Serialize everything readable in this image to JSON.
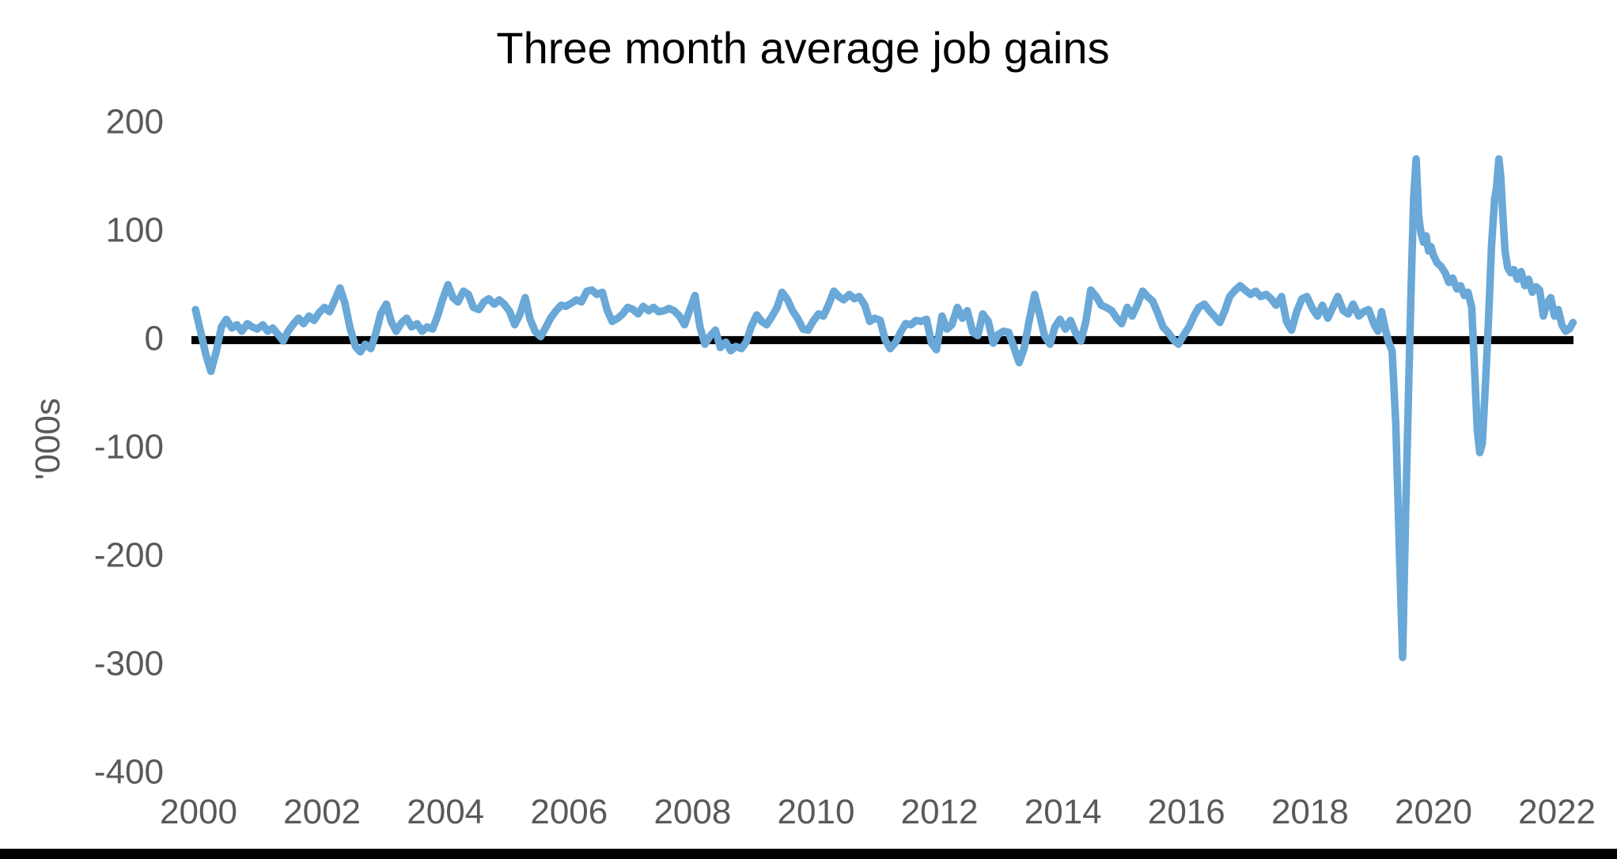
{
  "title": "Three month average job gains",
  "colors": {
    "line": "#69a8d7",
    "zero_line": "#000000",
    "bottom_bar": "#000000",
    "tick_label": "#595959",
    "title": "#000000",
    "background": "#ffffff"
  },
  "chart_data": {
    "type": "line",
    "title": "Three month average job gains",
    "xlabel": "",
    "ylabel": "'000s",
    "units": "thousands of jobs",
    "ylim": [
      -400,
      200
    ],
    "xlim": [
      1999.9,
      2022.45
    ],
    "y_ticks": [
      200,
      100,
      0,
      -100,
      -200,
      -300,
      -400
    ],
    "x_ticks": [
      2000,
      2002,
      2004,
      2006,
      2008,
      2010,
      2012,
      2014,
      2016,
      2018,
      2020,
      2022
    ],
    "grid": false,
    "legend": false,
    "zero_axis_emphasized": true,
    "series": [
      {
        "name": "Three month average job gains ('000s)",
        "points": [
          [
            1999.95,
            26
          ],
          [
            2000.04,
            4
          ],
          [
            2000.12,
            -16
          ],
          [
            2000.2,
            -31
          ],
          [
            2000.29,
            -12
          ],
          [
            2000.37,
            10
          ],
          [
            2000.45,
            17
          ],
          [
            2000.54,
            9
          ],
          [
            2000.62,
            12
          ],
          [
            2000.7,
            6
          ],
          [
            2000.79,
            13
          ],
          [
            2000.87,
            10
          ],
          [
            2000.95,
            8
          ],
          [
            2001.04,
            12
          ],
          [
            2001.12,
            6
          ],
          [
            2001.2,
            9
          ],
          [
            2001.29,
            3
          ],
          [
            2001.37,
            -3
          ],
          [
            2001.45,
            6
          ],
          [
            2001.54,
            13
          ],
          [
            2001.62,
            18
          ],
          [
            2001.7,
            13
          ],
          [
            2001.79,
            20
          ],
          [
            2001.87,
            16
          ],
          [
            2001.95,
            23
          ],
          [
            2002.04,
            28
          ],
          [
            2002.12,
            24
          ],
          [
            2002.2,
            34
          ],
          [
            2002.29,
            46
          ],
          [
            2002.37,
            32
          ],
          [
            2002.45,
            10
          ],
          [
            2002.54,
            -8
          ],
          [
            2002.62,
            -13
          ],
          [
            2002.7,
            -6
          ],
          [
            2002.79,
            -10
          ],
          [
            2002.87,
            4
          ],
          [
            2002.95,
            22
          ],
          [
            2003.04,
            31
          ],
          [
            2003.12,
            15
          ],
          [
            2003.2,
            6
          ],
          [
            2003.29,
            14
          ],
          [
            2003.37,
            18
          ],
          [
            2003.45,
            10
          ],
          [
            2003.54,
            13
          ],
          [
            2003.62,
            6
          ],
          [
            2003.7,
            10
          ],
          [
            2003.79,
            8
          ],
          [
            2003.87,
            20
          ],
          [
            2003.95,
            35
          ],
          [
            2004.04,
            49
          ],
          [
            2004.12,
            37
          ],
          [
            2004.2,
            33
          ],
          [
            2004.29,
            43
          ],
          [
            2004.37,
            40
          ],
          [
            2004.45,
            28
          ],
          [
            2004.54,
            26
          ],
          [
            2004.62,
            33
          ],
          [
            2004.7,
            36
          ],
          [
            2004.79,
            31
          ],
          [
            2004.87,
            35
          ],
          [
            2004.95,
            31
          ],
          [
            2005.04,
            24
          ],
          [
            2005.12,
            12
          ],
          [
            2005.2,
            21
          ],
          [
            2005.29,
            37
          ],
          [
            2005.37,
            17
          ],
          [
            2005.45,
            6
          ],
          [
            2005.54,
            1
          ],
          [
            2005.62,
            9
          ],
          [
            2005.7,
            18
          ],
          [
            2005.79,
            25
          ],
          [
            2005.87,
            30
          ],
          [
            2005.95,
            29
          ],
          [
            2006.04,
            32
          ],
          [
            2006.12,
            35
          ],
          [
            2006.2,
            33
          ],
          [
            2006.29,
            43
          ],
          [
            2006.37,
            44
          ],
          [
            2006.45,
            40
          ],
          [
            2006.54,
            42
          ],
          [
            2006.62,
            25
          ],
          [
            2006.7,
            15
          ],
          [
            2006.79,
            18
          ],
          [
            2006.87,
            22
          ],
          [
            2006.95,
            28
          ],
          [
            2007.04,
            26
          ],
          [
            2007.12,
            22
          ],
          [
            2007.2,
            29
          ],
          [
            2007.29,
            25
          ],
          [
            2007.37,
            28
          ],
          [
            2007.45,
            24
          ],
          [
            2007.54,
            25
          ],
          [
            2007.62,
            27
          ],
          [
            2007.7,
            25
          ],
          [
            2007.79,
            20
          ],
          [
            2007.87,
            12
          ],
          [
            2007.95,
            25
          ],
          [
            2008.04,
            39
          ],
          [
            2008.12,
            10
          ],
          [
            2008.2,
            -6
          ],
          [
            2008.29,
            2
          ],
          [
            2008.37,
            7
          ],
          [
            2008.45,
            -9
          ],
          [
            2008.54,
            -4
          ],
          [
            2008.62,
            -12
          ],
          [
            2008.7,
            -8
          ],
          [
            2008.79,
            -10
          ],
          [
            2008.87,
            -4
          ],
          [
            2008.95,
            10
          ],
          [
            2009.04,
            21
          ],
          [
            2009.12,
            15
          ],
          [
            2009.2,
            12
          ],
          [
            2009.29,
            20
          ],
          [
            2009.37,
            28
          ],
          [
            2009.45,
            42
          ],
          [
            2009.54,
            35
          ],
          [
            2009.62,
            25
          ],
          [
            2009.7,
            18
          ],
          [
            2009.79,
            8
          ],
          [
            2009.87,
            7
          ],
          [
            2009.95,
            15
          ],
          [
            2010.04,
            22
          ],
          [
            2010.12,
            20
          ],
          [
            2010.2,
            30
          ],
          [
            2010.29,
            43
          ],
          [
            2010.37,
            38
          ],
          [
            2010.45,
            35
          ],
          [
            2010.54,
            40
          ],
          [
            2010.62,
            36
          ],
          [
            2010.7,
            38
          ],
          [
            2010.79,
            30
          ],
          [
            2010.87,
            15
          ],
          [
            2010.95,
            18
          ],
          [
            2011.04,
            16
          ],
          [
            2011.12,
            -2
          ],
          [
            2011.2,
            -10
          ],
          [
            2011.29,
            -4
          ],
          [
            2011.37,
            5
          ],
          [
            2011.45,
            13
          ],
          [
            2011.54,
            12
          ],
          [
            2011.62,
            16
          ],
          [
            2011.7,
            15
          ],
          [
            2011.79,
            17
          ],
          [
            2011.87,
            -5
          ],
          [
            2011.95,
            -11
          ],
          [
            2012.04,
            20
          ],
          [
            2012.12,
            8
          ],
          [
            2012.2,
            12
          ],
          [
            2012.29,
            28
          ],
          [
            2012.37,
            18
          ],
          [
            2012.45,
            25
          ],
          [
            2012.54,
            5
          ],
          [
            2012.62,
            2
          ],
          [
            2012.7,
            22
          ],
          [
            2012.79,
            15
          ],
          [
            2012.87,
            -5
          ],
          [
            2012.95,
            3
          ],
          [
            2013.04,
            6
          ],
          [
            2013.12,
            5
          ],
          [
            2013.2,
            -8
          ],
          [
            2013.29,
            -23
          ],
          [
            2013.37,
            -10
          ],
          [
            2013.45,
            15
          ],
          [
            2013.54,
            40
          ],
          [
            2013.62,
            22
          ],
          [
            2013.7,
            2
          ],
          [
            2013.79,
            -6
          ],
          [
            2013.87,
            10
          ],
          [
            2013.95,
            17
          ],
          [
            2014.04,
            8
          ],
          [
            2014.12,
            16
          ],
          [
            2014.2,
            5
          ],
          [
            2014.29,
            -3
          ],
          [
            2014.37,
            15
          ],
          [
            2014.45,
            44
          ],
          [
            2014.54,
            38
          ],
          [
            2014.62,
            30
          ],
          [
            2014.7,
            28
          ],
          [
            2014.79,
            25
          ],
          [
            2014.87,
            18
          ],
          [
            2014.95,
            13
          ],
          [
            2015.04,
            28
          ],
          [
            2015.12,
            20
          ],
          [
            2015.2,
            30
          ],
          [
            2015.29,
            43
          ],
          [
            2015.37,
            38
          ],
          [
            2015.45,
            34
          ],
          [
            2015.54,
            22
          ],
          [
            2015.62,
            10
          ],
          [
            2015.7,
            5
          ],
          [
            2015.79,
            -2
          ],
          [
            2015.87,
            -6
          ],
          [
            2015.95,
            2
          ],
          [
            2016.04,
            10
          ],
          [
            2016.12,
            20
          ],
          [
            2016.2,
            28
          ],
          [
            2016.29,
            31
          ],
          [
            2016.37,
            25
          ],
          [
            2016.45,
            20
          ],
          [
            2016.54,
            14
          ],
          [
            2016.62,
            25
          ],
          [
            2016.7,
            38
          ],
          [
            2016.79,
            44
          ],
          [
            2016.87,
            48
          ],
          [
            2016.95,
            44
          ],
          [
            2017.04,
            40
          ],
          [
            2017.12,
            43
          ],
          [
            2017.2,
            38
          ],
          [
            2017.29,
            40
          ],
          [
            2017.37,
            36
          ],
          [
            2017.45,
            30
          ],
          [
            2017.54,
            38
          ],
          [
            2017.62,
            15
          ],
          [
            2017.7,
            7
          ],
          [
            2017.79,
            25
          ],
          [
            2017.87,
            36
          ],
          [
            2017.95,
            38
          ],
          [
            2018.04,
            27
          ],
          [
            2018.12,
            20
          ],
          [
            2018.2,
            30
          ],
          [
            2018.29,
            18
          ],
          [
            2018.37,
            28
          ],
          [
            2018.45,
            38
          ],
          [
            2018.54,
            25
          ],
          [
            2018.62,
            22
          ],
          [
            2018.7,
            31
          ],
          [
            2018.79,
            20
          ],
          [
            2018.87,
            24
          ],
          [
            2018.95,
            26
          ],
          [
            2019.04,
            12
          ],
          [
            2019.1,
            6
          ],
          [
            2019.16,
            24
          ],
          [
            2019.22,
            8
          ],
          [
            2019.28,
            -5
          ],
          [
            2019.33,
            -12
          ],
          [
            2019.39,
            -80
          ],
          [
            2019.45,
            -200
          ],
          [
            2019.5,
            -295
          ],
          [
            2019.55,
            -160
          ],
          [
            2019.6,
            -40
          ],
          [
            2019.64,
            50
          ],
          [
            2019.68,
            130
          ],
          [
            2019.72,
            165
          ],
          [
            2019.76,
            112
          ],
          [
            2019.8,
            96
          ],
          [
            2019.84,
            88
          ],
          [
            2019.88,
            94
          ],
          [
            2019.92,
            80
          ],
          [
            2019.96,
            84
          ],
          [
            2020.0,
            76
          ],
          [
            2020.06,
            69
          ],
          [
            2020.12,
            66
          ],
          [
            2020.19,
            60
          ],
          [
            2020.25,
            51
          ],
          [
            2020.31,
            55
          ],
          [
            2020.38,
            45
          ],
          [
            2020.44,
            48
          ],
          [
            2020.5,
            39
          ],
          [
            2020.56,
            42
          ],
          [
            2020.62,
            28
          ],
          [
            2020.67,
            -35
          ],
          [
            2020.71,
            -85
          ],
          [
            2020.75,
            -106
          ],
          [
            2020.79,
            -98
          ],
          [
            2020.84,
            -45
          ],
          [
            2020.89,
            15
          ],
          [
            2020.94,
            85
          ],
          [
            2020.99,
            128
          ],
          [
            2021.02,
            138
          ],
          [
            2021.06,
            165
          ],
          [
            2021.09,
            148
          ],
          [
            2021.12,
            117
          ],
          [
            2021.16,
            80
          ],
          [
            2021.2,
            65
          ],
          [
            2021.25,
            60
          ],
          [
            2021.3,
            63
          ],
          [
            2021.36,
            54
          ],
          [
            2021.42,
            61
          ],
          [
            2021.48,
            48
          ],
          [
            2021.54,
            54
          ],
          [
            2021.6,
            42
          ],
          [
            2021.66,
            47
          ],
          [
            2021.72,
            44
          ],
          [
            2021.78,
            20
          ],
          [
            2021.84,
            32
          ],
          [
            2021.9,
            37
          ],
          [
            2021.96,
            20
          ],
          [
            2022.02,
            26
          ],
          [
            2022.08,
            12
          ],
          [
            2022.14,
            6
          ],
          [
            2022.2,
            8
          ],
          [
            2022.26,
            14
          ]
        ]
      }
    ]
  }
}
